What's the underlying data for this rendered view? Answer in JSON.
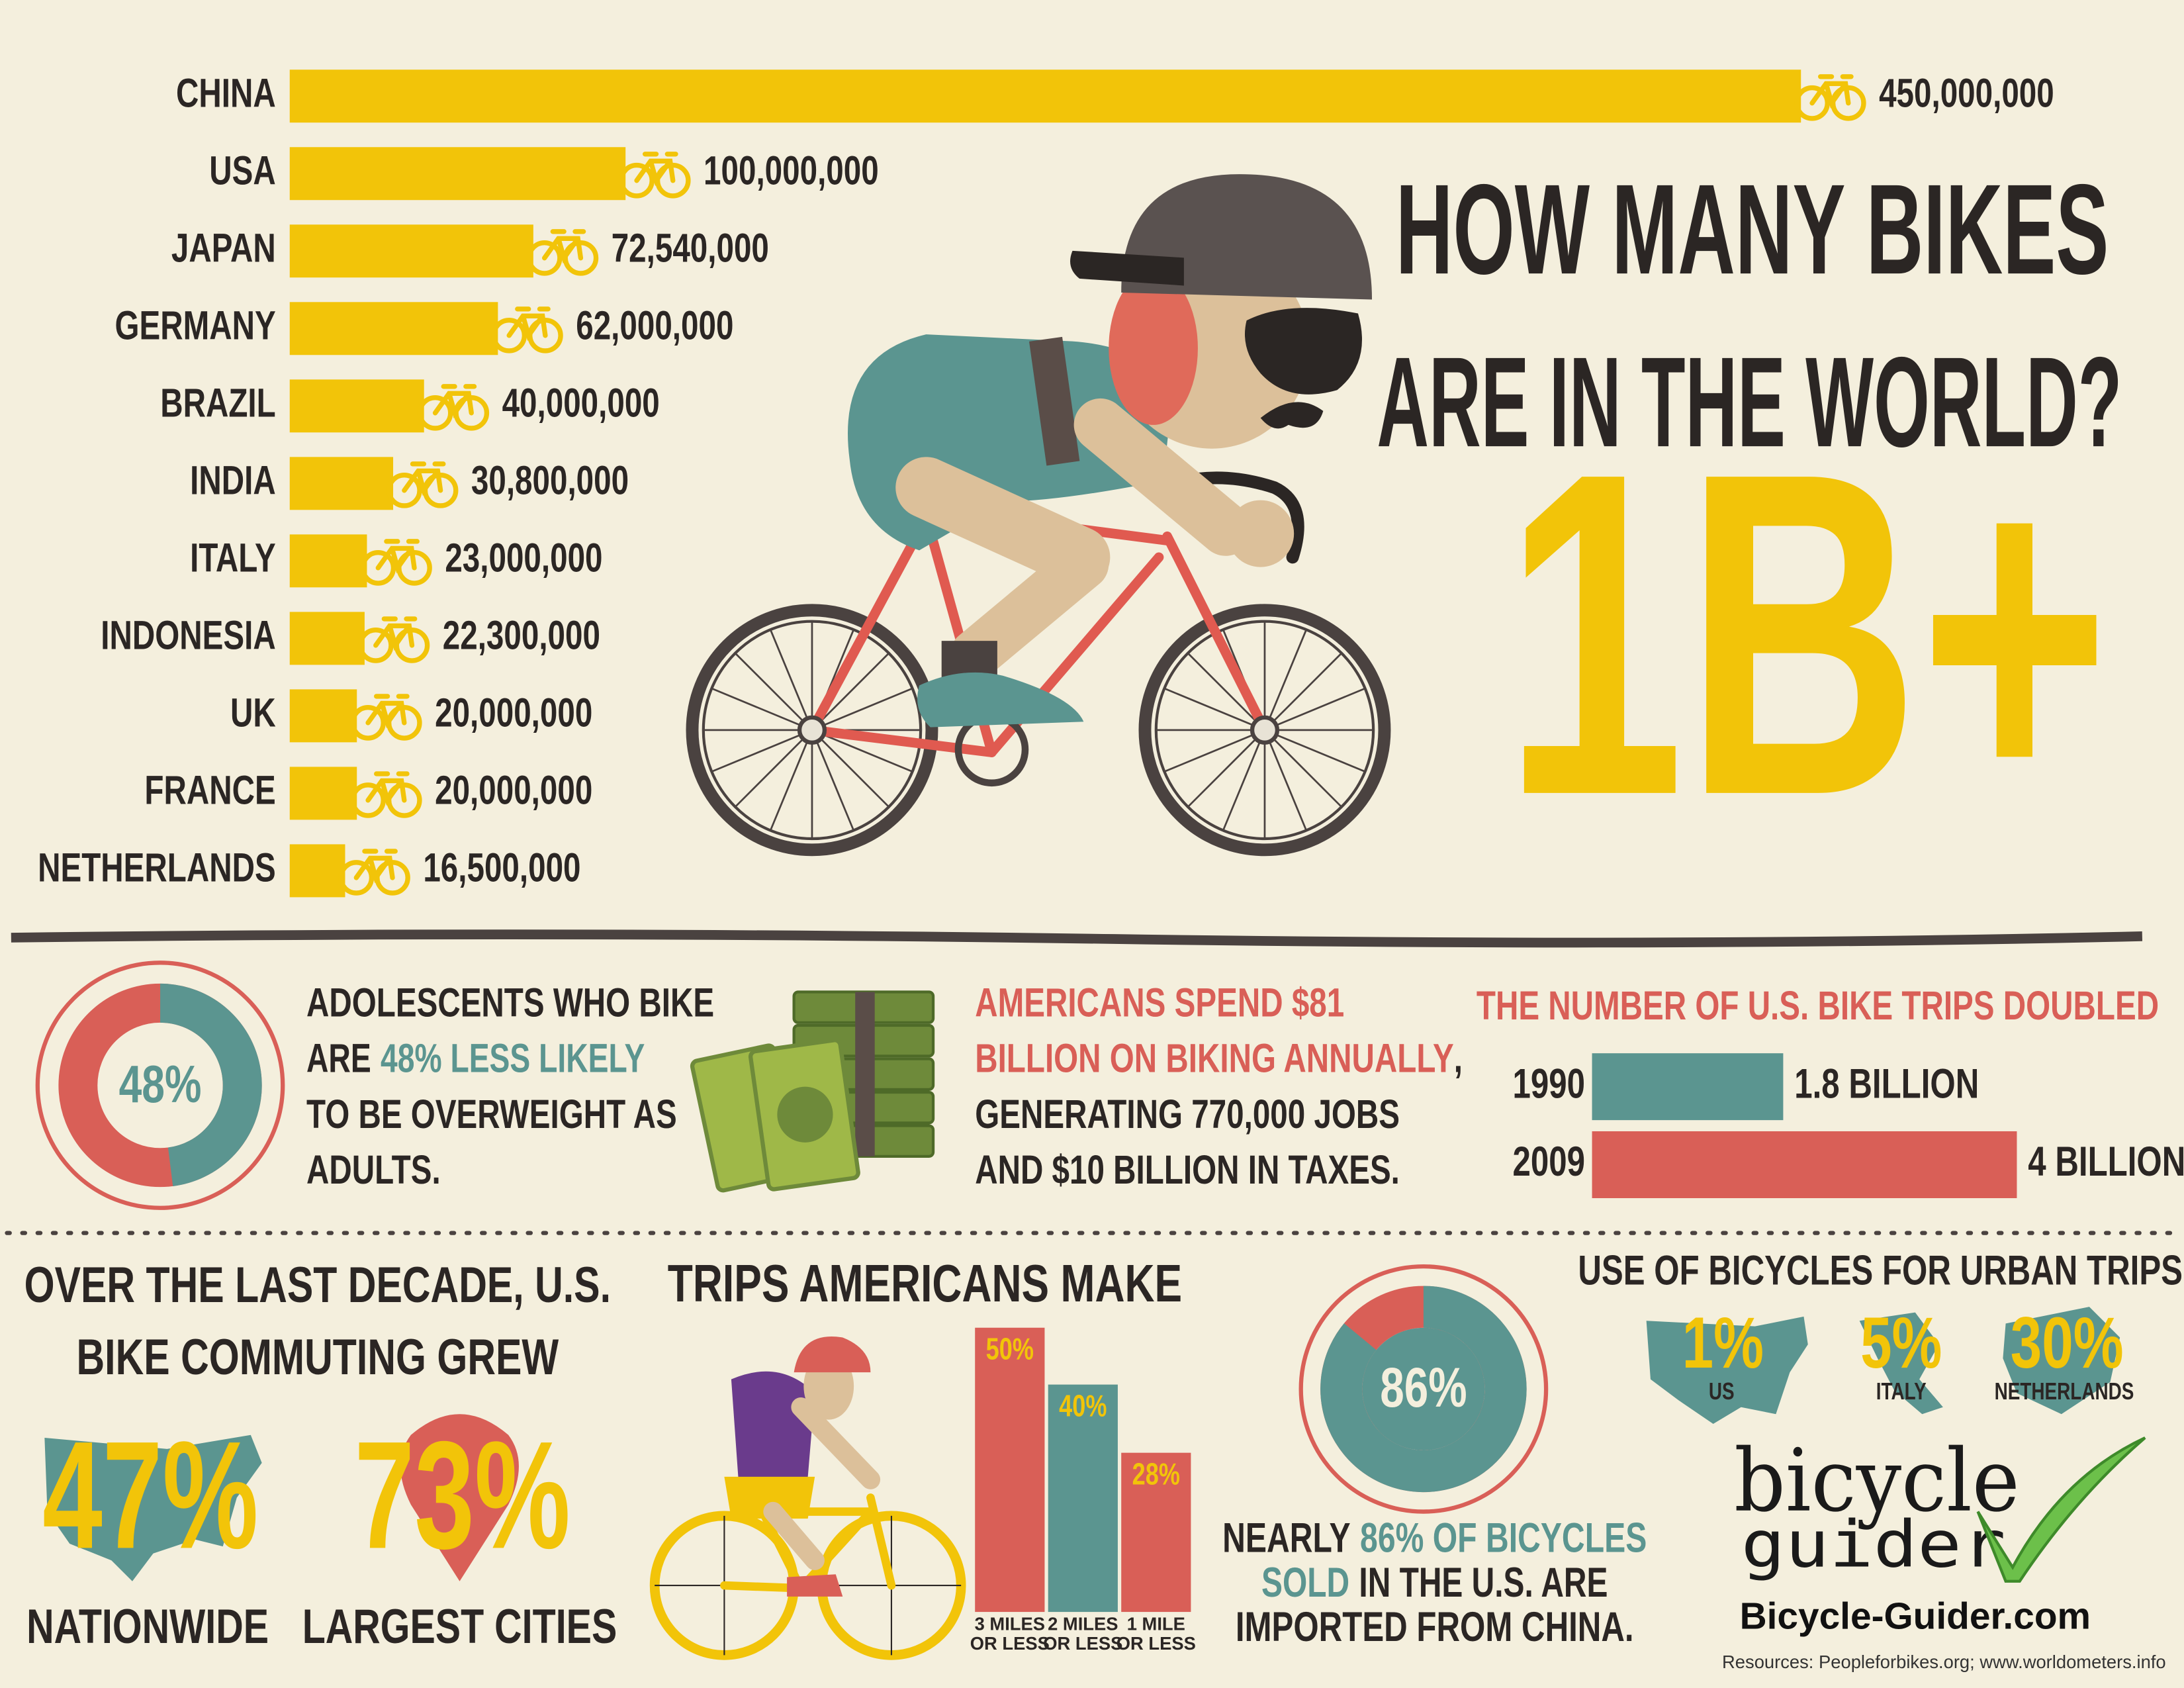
{
  "title": {
    "line1": "HOW MANY BIKES",
    "line2": "ARE IN THE WORLD?",
    "total": "1B+"
  },
  "chart_data": [
    {
      "type": "bar",
      "orientation": "horizontal",
      "categories": [
        "CHINA",
        "USA",
        "JAPAN",
        "GERMANY",
        "BRAZIL",
        "INDIA",
        "ITALY",
        "INDONESIA",
        "UK",
        "FRANCE",
        "NETHERLANDS"
      ],
      "values": [
        450000000,
        100000000,
        72540000,
        62000000,
        40000000,
        30800000,
        23000000,
        22300000,
        20000000,
        20000000,
        16500000
      ],
      "value_labels": [
        "450,000,000",
        "100,000,000",
        "72,540,000",
        "62,000,000",
        "40,000,000",
        "30,800,000",
        "23,000,000",
        "22,300,000",
        "20,000,000",
        "20,000,000",
        "16,500,000"
      ],
      "color": "#f2c409"
    },
    {
      "type": "donut",
      "values": [
        48
      ],
      "value_labels": [
        "48%"
      ],
      "color": "#5b9590",
      "rest_color": "#d95f57"
    },
    {
      "type": "bar",
      "orientation": "horizontal",
      "title": "THE NUMBER OF U.S. BIKE TRIPS DOUBLED",
      "categories": [
        "1990",
        "2009"
      ],
      "values": [
        1.8,
        4
      ],
      "value_labels": [
        "1.8 BILLION",
        "4 BILLION"
      ],
      "colors": [
        "#5b9590",
        "#d95f57"
      ]
    },
    {
      "type": "bar",
      "orientation": "vertical",
      "title": "TRIPS AMERICANS MAKE",
      "categories": [
        "3 MILES OR LESS",
        "2 MILES OR LESS",
        "1 MILE OR LESS"
      ],
      "values": [
        50,
        40,
        28
      ],
      "value_labels": [
        "50%",
        "40%",
        "28%"
      ],
      "colors": [
        "#d95f57",
        "#5b9590",
        "#d95f57"
      ]
    },
    {
      "type": "donut",
      "values": [
        86
      ],
      "value_labels": [
        "86%"
      ],
      "color": "#5b9590",
      "rest_color": "#d95f57"
    }
  ],
  "adolescents": {
    "lines": [
      [
        "ADOLESCENTS WHO BIKE"
      ],
      [
        "ARE",
        "48% LESS LIKELY"
      ],
      [
        "TO BE OVERWEIGHT AS"
      ],
      [
        "ADULTS."
      ]
    ]
  },
  "spending": {
    "lines": [
      [
        "AMERICANS SPEND $81"
      ],
      [
        "BILLION ON BIKING ANNUALLY",
        ","
      ],
      [
        "GENERATING 770,000 JOBS"
      ],
      [
        "AND $10 BILLION IN TAXES."
      ]
    ]
  },
  "commuting": {
    "line1": "OVER THE LAST DECADE, U.S.",
    "line2": "BIKE COMMUTING GREW",
    "stats": [
      {
        "value": "47%",
        "label": "NATIONWIDE"
      },
      {
        "value": "73%",
        "label": "LARGEST CITIES"
      }
    ]
  },
  "imports": {
    "lines": [
      [
        "NEARLY",
        "86% OF BICYCLES"
      ],
      [
        "SOLD",
        "IN THE U.S. ARE"
      ],
      [
        "IMPORTED FROM CHINA."
      ]
    ]
  },
  "urban": {
    "title": "USE OF BICYCLES FOR URBAN TRIPS",
    "items": [
      {
        "value": "1%",
        "label": "US"
      },
      {
        "value": "5%",
        "label": "ITALY"
      },
      {
        "value": "30%",
        "label": "NETHERLANDS"
      }
    ]
  },
  "brand": {
    "logo_line1": "bicycle",
    "logo_line2": "guider",
    "site": "Bicycle-Guider.com",
    "resources": "Resources: Peopleforbikes.org; www.worldometers.info"
  }
}
